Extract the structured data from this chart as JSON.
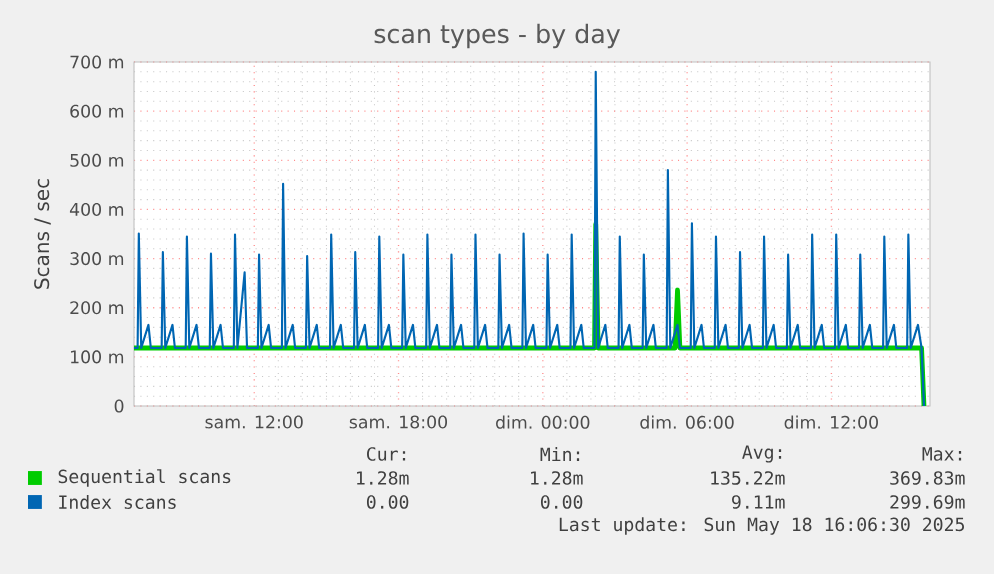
{
  "chart_data": {
    "type": "line",
    "title": "scan types - by day",
    "ylabel": "Scans / sec",
    "xlim": [
      "2025-05-17T07:00",
      "2025-05-18T16:06"
    ],
    "ylim": [
      0,
      700
    ],
    "xticks": [
      {
        "value": "2025-05-17T12:00",
        "label": "sam. 12:00"
      },
      {
        "value": "2025-05-17T18:00",
        "label": "sam. 18:00"
      },
      {
        "value": "2025-05-18T00:00",
        "label": "dim. 00:00"
      },
      {
        "value": "2025-05-18T06:00",
        "label": "dim. 06:00"
      },
      {
        "value": "2025-05-18T12:00",
        "label": "dim. 12:00"
      }
    ],
    "yticks": [
      {
        "value": 0,
        "label": "0"
      },
      {
        "value": 100,
        "label": "100 m"
      },
      {
        "value": 200,
        "label": "200 m"
      },
      {
        "value": 300,
        "label": "300 m"
      },
      {
        "value": 400,
        "label": "400 m"
      },
      {
        "value": 500,
        "label": "500 m"
      },
      {
        "value": 600,
        "label": "600 m"
      },
      {
        "value": 700,
        "label": "700 m"
      }
    ],
    "grid": true,
    "legend": "bottom",
    "series": [
      {
        "name": "Sequential scans",
        "color": "#00cc00",
        "x": [
          "2025-05-17T07:00",
          "2025-05-18T02:09",
          "2025-05-18T02:12",
          "2025-05-18T02:18",
          "2025-05-18T05:30",
          "2025-05-18T05:36",
          "2025-05-18T05:42",
          "2025-05-18T15:45",
          "2025-05-18T15:51"
        ],
        "values": [
          118,
          118,
          370,
          118,
          118,
          236,
          118,
          118,
          0
        ]
      },
      {
        "name": "Index scans",
        "color": "#0066b3",
        "x": [
          "2025-05-17T07:00",
          "2025-05-17T07:09",
          "2025-05-17T07:12",
          "2025-05-17T07:18",
          "2025-05-17T07:36",
          "2025-05-17T07:42",
          "2025-05-17T08:09",
          "2025-05-17T08:12",
          "2025-05-17T08:18",
          "2025-05-17T08:36",
          "2025-05-17T08:42",
          "2025-05-17T09:09",
          "2025-05-17T09:12",
          "2025-05-17T09:18",
          "2025-05-17T09:36",
          "2025-05-17T09:42",
          "2025-05-17T10:09",
          "2025-05-17T10:12",
          "2025-05-17T10:18",
          "2025-05-17T10:36",
          "2025-05-17T10:42",
          "2025-05-17T11:09",
          "2025-05-17T11:12",
          "2025-05-17T11:18",
          "2025-05-17T11:36",
          "2025-05-17T11:42",
          "2025-05-17T12:09",
          "2025-05-17T12:12",
          "2025-05-17T12:18",
          "2025-05-17T12:36",
          "2025-05-17T12:42",
          "2025-05-17T13:09",
          "2025-05-17T13:12",
          "2025-05-17T13:18",
          "2025-05-17T13:36",
          "2025-05-17T13:42",
          "2025-05-17T14:09",
          "2025-05-17T14:12",
          "2025-05-17T14:18",
          "2025-05-17T14:36",
          "2025-05-17T14:42",
          "2025-05-17T15:09",
          "2025-05-17T15:12",
          "2025-05-17T15:18",
          "2025-05-17T15:36",
          "2025-05-17T15:42",
          "2025-05-17T16:09",
          "2025-05-17T16:12",
          "2025-05-17T16:18",
          "2025-05-17T16:36",
          "2025-05-17T16:42",
          "2025-05-17T17:09",
          "2025-05-17T17:12",
          "2025-05-17T17:18",
          "2025-05-17T17:36",
          "2025-05-17T17:42",
          "2025-05-17T18:09",
          "2025-05-17T18:12",
          "2025-05-17T18:18",
          "2025-05-17T18:36",
          "2025-05-17T18:42",
          "2025-05-17T19:09",
          "2025-05-17T19:12",
          "2025-05-17T19:18",
          "2025-05-17T19:36",
          "2025-05-17T19:42",
          "2025-05-17T20:09",
          "2025-05-17T20:12",
          "2025-05-17T20:18",
          "2025-05-17T20:36",
          "2025-05-17T20:42",
          "2025-05-17T21:09",
          "2025-05-17T21:12",
          "2025-05-17T21:18",
          "2025-05-17T21:36",
          "2025-05-17T21:42",
          "2025-05-17T22:09",
          "2025-05-17T22:12",
          "2025-05-17T22:18",
          "2025-05-17T22:36",
          "2025-05-17T22:42",
          "2025-05-17T23:09",
          "2025-05-17T23:12",
          "2025-05-17T23:18",
          "2025-05-17T23:36",
          "2025-05-17T23:42",
          "2025-05-18T00:09",
          "2025-05-18T00:12",
          "2025-05-18T00:18",
          "2025-05-18T00:36",
          "2025-05-18T00:42",
          "2025-05-18T01:09",
          "2025-05-18T01:12",
          "2025-05-18T01:18",
          "2025-05-18T01:36",
          "2025-05-18T01:42",
          "2025-05-18T02:09",
          "2025-05-18T02:12",
          "2025-05-18T02:18",
          "2025-05-18T02:36",
          "2025-05-18T02:42",
          "2025-05-18T03:09",
          "2025-05-18T03:12",
          "2025-05-18T03:18",
          "2025-05-18T03:36",
          "2025-05-18T03:42",
          "2025-05-18T04:09",
          "2025-05-18T04:12",
          "2025-05-18T04:18",
          "2025-05-18T04:36",
          "2025-05-18T04:42",
          "2025-05-18T05:09",
          "2025-05-18T05:12",
          "2025-05-18T05:18",
          "2025-05-18T05:36",
          "2025-05-18T05:42",
          "2025-05-18T06:09",
          "2025-05-18T06:12",
          "2025-05-18T06:18",
          "2025-05-18T06:36",
          "2025-05-18T06:42",
          "2025-05-18T07:09",
          "2025-05-18T07:12",
          "2025-05-18T07:18",
          "2025-05-18T07:36",
          "2025-05-18T07:42",
          "2025-05-18T08:09",
          "2025-05-18T08:12",
          "2025-05-18T08:18",
          "2025-05-18T08:36",
          "2025-05-18T08:42",
          "2025-05-18T09:09",
          "2025-05-18T09:12",
          "2025-05-18T09:18",
          "2025-05-18T09:36",
          "2025-05-18T09:42",
          "2025-05-18T10:09",
          "2025-05-18T10:12",
          "2025-05-18T10:18",
          "2025-05-18T10:36",
          "2025-05-18T10:42",
          "2025-05-18T11:09",
          "2025-05-18T11:12",
          "2025-05-18T11:18",
          "2025-05-18T11:36",
          "2025-05-18T11:42",
          "2025-05-18T12:09",
          "2025-05-18T12:12",
          "2025-05-18T12:18",
          "2025-05-18T12:36",
          "2025-05-18T12:42",
          "2025-05-18T13:09",
          "2025-05-18T13:12",
          "2025-05-18T13:18",
          "2025-05-18T13:36",
          "2025-05-18T13:42",
          "2025-05-18T14:09",
          "2025-05-18T14:12",
          "2025-05-18T14:18",
          "2025-05-18T14:36",
          "2025-05-18T14:42",
          "2025-05-18T15:09",
          "2025-05-18T15:12",
          "2025-05-18T15:18",
          "2025-05-18T15:36",
          "2025-05-18T15:45",
          "2025-05-18T15:51"
        ],
        "values": [
          118,
          118,
          351,
          118,
          165,
          118,
          118,
          313,
          118,
          165,
          118,
          118,
          345,
          118,
          165,
          118,
          118,
          310,
          118,
          165,
          118,
          118,
          349,
          118,
          272,
          118,
          118,
          308,
          118,
          165,
          118,
          118,
          452,
          118,
          165,
          118,
          118,
          305,
          118,
          165,
          118,
          118,
          349,
          118,
          165,
          118,
          118,
          313,
          118,
          165,
          118,
          118,
          345,
          118,
          165,
          118,
          118,
          308,
          118,
          165,
          118,
          118,
          349,
          118,
          165,
          118,
          118,
          308,
          118,
          165,
          118,
          118,
          349,
          118,
          165,
          118,
          118,
          308,
          118,
          165,
          118,
          118,
          351,
          118,
          165,
          118,
          118,
          308,
          118,
          165,
          118,
          118,
          349,
          118,
          165,
          118,
          118,
          680,
          118,
          165,
          118,
          118,
          345,
          118,
          165,
          118,
          118,
          308,
          118,
          165,
          118,
          118,
          480,
          118,
          165,
          118,
          118,
          372,
          118,
          165,
          118,
          118,
          345,
          118,
          165,
          118,
          118,
          313,
          118,
          165,
          118,
          118,
          345,
          118,
          165,
          118,
          118,
          308,
          118,
          165,
          118,
          118,
          349,
          118,
          165,
          118,
          118,
          349,
          118,
          165,
          118,
          118,
          308,
          118,
          165,
          118,
          118,
          345,
          118,
          165,
          118,
          118,
          349,
          118,
          165,
          118,
          0
        ]
      }
    ],
    "annotations": [
      "Cur:",
      "Min:",
      "Avg:",
      "Max:",
      "1.28m",
      "1.28m",
      "135.22m",
      "369.83m",
      "0.00",
      "0.00",
      "9.11m",
      "299.69m",
      "Last update: Sun May 18 16:06:30 2025"
    ]
  }
}
